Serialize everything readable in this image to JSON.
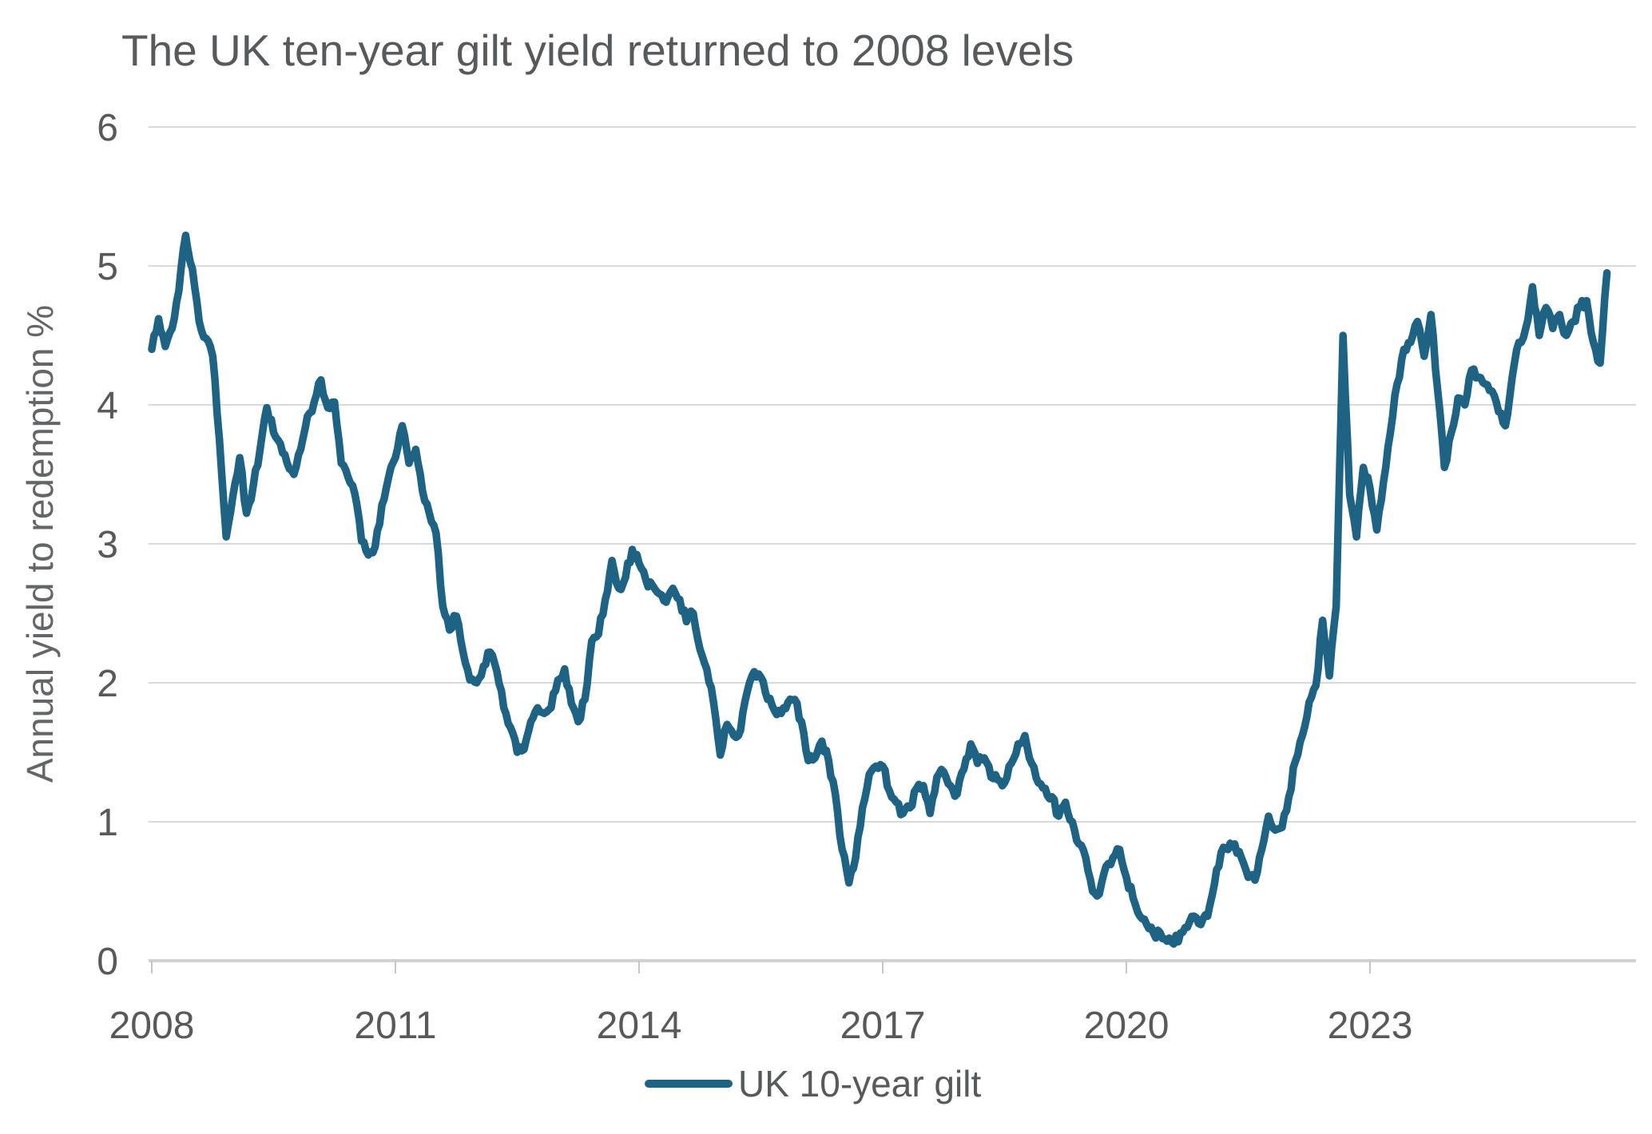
{
  "page": {
    "background_color": "#ffffff"
  },
  "colors": {
    "series_line": "#1e6284",
    "gridline": "#d9d9d9",
    "axis_line": "#d2d2d2",
    "tick_mark": "#c6c6c6",
    "title_text": "#58595b",
    "label_text": "#595959",
    "y_axis_title_text": "#646567"
  },
  "chart_data": {
    "type": "line",
    "title": "The UK ten-year gilt yield returned to 2008 levels",
    "xlabel": "",
    "ylabel": "Annual yield to redemption %",
    "ylim": [
      0,
      6
    ],
    "yticks": [
      0,
      1,
      2,
      3,
      4,
      5,
      6
    ],
    "xticks": [
      2008,
      2011,
      2014,
      2017,
      2020,
      2023
    ],
    "x_range": [
      2008.0,
      2026.0
    ],
    "grid": "horizontal-only",
    "legend_position": "bottom-center",
    "series": [
      {
        "name": "UK 10-year gilt",
        "color": "#1e6284",
        "unit": "percent",
        "start_year": 2008,
        "interval": "monthly",
        "values_monthly": [
          4.4,
          4.62,
          4.42,
          4.55,
          4.82,
          5.22,
          4.98,
          4.6,
          4.48,
          4.35,
          3.75,
          3.05,
          3.35,
          3.62,
          3.22,
          3.42,
          3.68,
          3.98,
          3.8,
          3.72,
          3.58,
          3.5,
          3.68,
          3.92,
          4.02,
          4.18,
          3.98,
          4.02,
          3.58,
          3.48,
          3.36,
          3.02,
          2.92,
          2.98,
          3.28,
          3.48,
          3.62,
          3.85,
          3.58,
          3.68,
          3.38,
          3.22,
          3.08,
          2.55,
          2.38,
          2.48,
          2.22,
          2.02,
          2.0,
          2.12,
          2.22,
          2.08,
          1.82,
          1.68,
          1.5,
          1.52,
          1.72,
          1.82,
          1.78,
          1.82,
          2.02,
          2.1,
          1.85,
          1.72,
          1.88,
          2.3,
          2.35,
          2.6,
          2.88,
          2.68,
          2.76,
          2.96,
          2.86,
          2.74,
          2.7,
          2.64,
          2.58,
          2.68,
          2.6,
          2.44,
          2.5,
          2.24,
          2.1,
          1.86,
          1.48,
          1.7,
          1.62,
          1.66,
          1.94,
          2.08,
          2.04,
          1.88,
          1.8,
          1.78,
          1.86,
          1.88,
          1.72,
          1.44,
          1.46,
          1.58,
          1.44,
          1.2,
          0.8,
          0.56,
          0.74,
          1.1,
          1.34,
          1.4,
          1.4,
          1.22,
          1.14,
          1.06,
          1.1,
          1.24,
          1.26,
          1.06,
          1.32,
          1.36,
          1.26,
          1.2,
          1.38,
          1.56,
          1.42,
          1.46,
          1.32,
          1.3,
          1.28,
          1.42,
          1.56,
          1.62,
          1.42,
          1.28,
          1.24,
          1.18,
          1.04,
          1.14,
          1.0,
          0.84,
          0.74,
          0.5,
          0.48,
          0.68,
          0.74,
          0.8,
          0.6,
          0.45,
          0.32,
          0.26,
          0.2,
          0.2,
          0.14,
          0.12,
          0.2,
          0.24,
          0.32,
          0.26,
          0.32,
          0.55,
          0.78,
          0.8,
          0.84,
          0.74,
          0.6,
          0.58,
          0.8,
          1.04,
          0.94,
          0.96,
          1.18,
          1.44,
          1.62,
          1.86,
          1.98,
          2.45,
          2.05,
          2.55,
          4.5,
          3.35,
          3.05,
          3.55,
          3.4,
          3.1,
          3.45,
          3.8,
          4.15,
          4.4,
          4.45,
          4.6,
          4.35,
          4.65,
          4.1,
          3.55,
          3.8,
          4.05,
          4.0,
          4.25,
          4.2,
          4.15,
          4.1,
          3.95,
          3.85,
          4.2,
          4.45,
          4.55,
          4.85,
          4.5,
          4.7,
          4.55,
          4.65,
          4.5,
          4.6,
          4.7,
          4.75,
          4.45,
          4.3,
          4.95
        ]
      }
    ]
  },
  "legend": {
    "label": "UK 10-year gilt"
  }
}
